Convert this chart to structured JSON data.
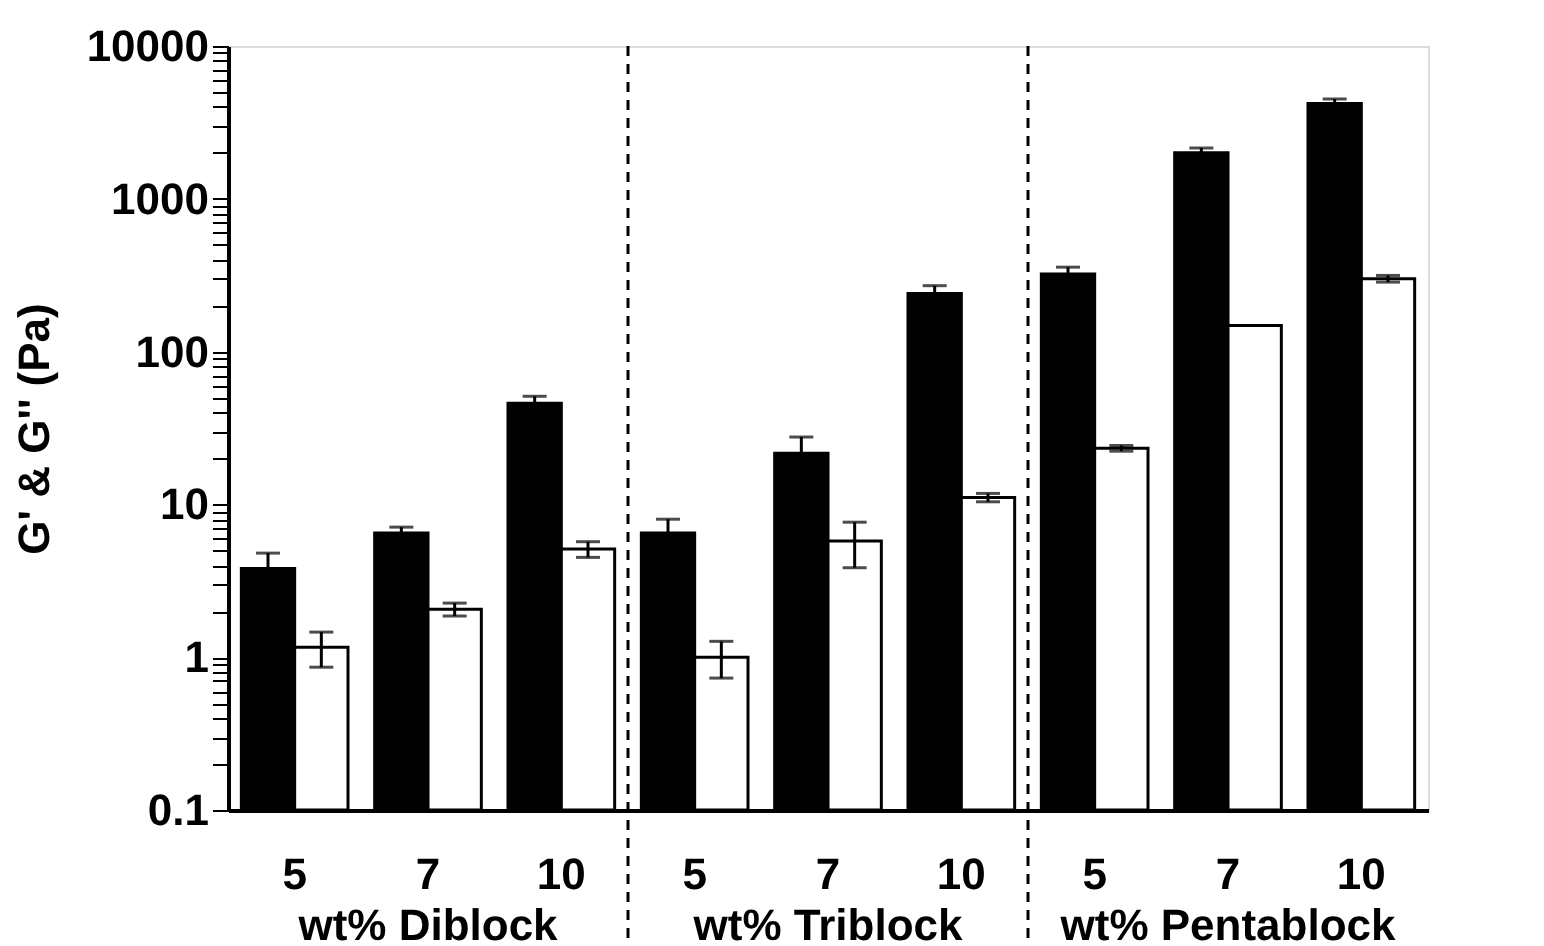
{
  "chart_data": {
    "type": "bar",
    "ylabel": "G' & G'' (Pa)",
    "log": "y",
    "categories": [
      "5",
      "7",
      "10",
      "5",
      "7",
      "10",
      "5",
      "7",
      "10"
    ],
    "ylim": [
      0.1,
      10000
    ],
    "yticks": [
      0.1,
      {
        "value": 0.2,
        "label": null
      },
      {
        "value": 0.3,
        "label": null
      },
      {
        "value": 0.4,
        "label": null
      },
      {
        "value": 0.5,
        "label": null
      },
      {
        "value": 0.6,
        "label": null
      },
      {
        "value": 0.7,
        "label": null
      },
      {
        "value": 0.8,
        "label": null
      },
      {
        "value": 0.9,
        "label": null
      },
      1,
      {
        "value": 2,
        "label": null
      },
      {
        "value": 3,
        "label": null
      },
      {
        "value": 4,
        "label": null
      },
      {
        "value": 5,
        "label": null
      },
      {
        "value": 6,
        "label": null
      },
      {
        "value": 7,
        "label": null
      },
      {
        "value": 8,
        "label": null
      },
      {
        "value": 9,
        "label": null
      },
      10,
      {
        "value": 20,
        "label": null
      },
      {
        "value": 30,
        "label": null
      },
      {
        "value": 40,
        "label": null
      },
      {
        "value": 50,
        "label": null
      },
      {
        "value": 60,
        "label": null
      },
      {
        "value": 70,
        "label": null
      },
      {
        "value": 80,
        "label": null
      },
      {
        "value": 90,
        "label": null
      },
      100,
      {
        "value": 200,
        "label": null
      },
      {
        "value": 300,
        "label": null
      },
      {
        "value": 400,
        "label": null
      },
      {
        "value": 500,
        "label": null
      },
      {
        "value": 600,
        "label": null
      },
      {
        "value": 700,
        "label": null
      },
      {
        "value": 800,
        "label": null
      },
      {
        "value": 900,
        "label": null
      },
      1000,
      {
        "value": 2000,
        "label": null
      },
      {
        "value": 3000,
        "label": null
      },
      {
        "value": 4000,
        "label": null
      },
      {
        "value": 5000,
        "label": null
      },
      {
        "value": 6000,
        "label": null
      },
      {
        "value": 7000,
        "label": null
      },
      {
        "value": 8000,
        "label": null
      },
      {
        "value": 9000,
        "label": null
      },
      10000
    ],
    "series": [
      {
        "color": "#000000",
        "values": [
          3.8,
          6.5,
          46,
          6.5,
          21.6,
          240,
          322,
          2000,
          4200
        ],
        "errors": [
          1,
          0.6,
          5,
          1.5,
          6,
          30,
          35,
          150,
          300
        ]
      },
      {
        "color": "#ffffff",
        "values": [
          1.16,
          2.06,
          5.1,
          1.0,
          5.75,
          11.1,
          23.3,
          148,
          300
        ],
        "errors": [
          0.3,
          0.2,
          0.6,
          0.27,
          1.9,
          0.7,
          1,
          null,
          15
        ]
      }
    ],
    "annotations": [
      "wt% Diblock",
      "wt% Triblock",
      "wt% Pentablock"
    ],
    "grid": false,
    "legend": false
  }
}
